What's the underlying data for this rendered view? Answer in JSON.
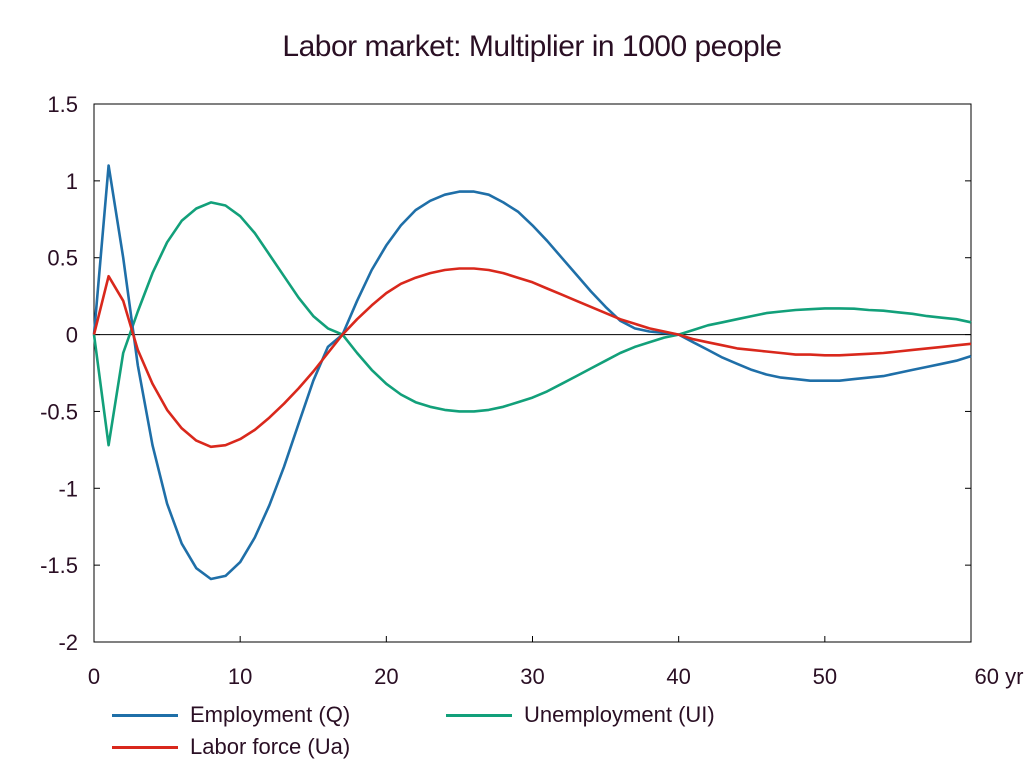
{
  "chart_data": {
    "type": "line",
    "title": "Labor market: Multiplier in 1000 people",
    "xlabel": "",
    "ylabel": "",
    "x_unit": "yr",
    "xlim": [
      0,
      60
    ],
    "ylim": [
      -2,
      1.5
    ],
    "x_ticks": [
      0,
      10,
      20,
      30,
      40,
      50,
      60
    ],
    "x_tick_labels": [
      "0",
      "10",
      "20",
      "30",
      "40",
      "50",
      "60 yr"
    ],
    "y_ticks": [
      1.5,
      1,
      0.5,
      0,
      -0.5,
      -1,
      -1.5,
      -2
    ],
    "y_tick_labels": [
      "1.5",
      "1",
      "0.5",
      "0",
      "-0.5",
      "-1",
      "-1.5",
      "-2"
    ],
    "grid": false,
    "legend_position": "bottom",
    "series": [
      {
        "name": "Employment (Q)",
        "color": "#1f6fa8",
        "x": [
          0,
          1,
          2,
          3,
          4,
          5,
          6,
          7,
          8,
          9,
          10,
          11,
          12,
          13,
          14,
          15,
          16,
          17,
          18,
          19,
          20,
          21,
          22,
          23,
          24,
          25,
          26,
          27,
          28,
          29,
          30,
          31,
          32,
          33,
          34,
          35,
          36,
          37,
          38,
          39,
          40,
          41,
          42,
          43,
          44,
          45,
          46,
          47,
          48,
          49,
          50,
          51,
          52,
          53,
          54,
          55,
          56,
          57,
          58,
          59,
          60
        ],
        "y": [
          0,
          1.1,
          0.5,
          -0.2,
          -0.72,
          -1.1,
          -1.36,
          -1.52,
          -1.59,
          -1.57,
          -1.48,
          -1.32,
          -1.11,
          -0.86,
          -0.58,
          -0.3,
          -0.08,
          0,
          0.22,
          0.42,
          0.58,
          0.71,
          0.81,
          0.87,
          0.91,
          0.93,
          0.93,
          0.91,
          0.86,
          0.8,
          0.71,
          0.61,
          0.5,
          0.39,
          0.28,
          0.18,
          0.09,
          0.04,
          0.02,
          0.01,
          0,
          -0.05,
          -0.1,
          -0.15,
          -0.19,
          -0.23,
          -0.26,
          -0.28,
          -0.29,
          -0.3,
          -0.3,
          -0.3,
          -0.29,
          -0.28,
          -0.27,
          -0.25,
          -0.23,
          -0.21,
          -0.19,
          -0.17,
          -0.14
        ]
      },
      {
        "name": "Unemployment (UI)",
        "color": "#12a07a",
        "x": [
          0,
          1,
          2,
          3,
          4,
          5,
          6,
          7,
          8,
          9,
          10,
          11,
          12,
          13,
          14,
          15,
          16,
          17,
          18,
          19,
          20,
          21,
          22,
          23,
          24,
          25,
          26,
          27,
          28,
          29,
          30,
          31,
          32,
          33,
          34,
          35,
          36,
          37,
          38,
          39,
          40,
          41,
          42,
          43,
          44,
          45,
          46,
          47,
          48,
          49,
          50,
          51,
          52,
          53,
          54,
          55,
          56,
          57,
          58,
          59,
          60
        ],
        "y": [
          0,
          -0.72,
          -0.12,
          0.15,
          0.4,
          0.6,
          0.74,
          0.82,
          0.86,
          0.84,
          0.77,
          0.66,
          0.52,
          0.38,
          0.24,
          0.12,
          0.04,
          0,
          -0.12,
          -0.23,
          -0.32,
          -0.39,
          -0.44,
          -0.47,
          -0.49,
          -0.5,
          -0.5,
          -0.49,
          -0.47,
          -0.44,
          -0.41,
          -0.37,
          -0.32,
          -0.27,
          -0.22,
          -0.17,
          -0.12,
          -0.08,
          -0.05,
          -0.02,
          0,
          0.03,
          0.06,
          0.08,
          0.1,
          0.12,
          0.14,
          0.15,
          0.16,
          0.165,
          0.17,
          0.17,
          0.168,
          0.16,
          0.155,
          0.145,
          0.135,
          0.12,
          0.11,
          0.1,
          0.08
        ]
      },
      {
        "name": "Labor force (Ua)",
        "color": "#d9281c",
        "x": [
          0,
          1,
          2,
          3,
          4,
          5,
          6,
          7,
          8,
          9,
          10,
          11,
          12,
          13,
          14,
          15,
          16,
          17,
          18,
          19,
          20,
          21,
          22,
          23,
          24,
          25,
          26,
          27,
          28,
          29,
          30,
          31,
          32,
          33,
          34,
          35,
          36,
          37,
          38,
          39,
          40,
          41,
          42,
          43,
          44,
          45,
          46,
          47,
          48,
          49,
          50,
          51,
          52,
          53,
          54,
          55,
          56,
          57,
          58,
          59,
          60
        ],
        "y": [
          0,
          0.38,
          0.22,
          -0.1,
          -0.32,
          -0.49,
          -0.61,
          -0.69,
          -0.73,
          -0.72,
          -0.68,
          -0.62,
          -0.54,
          -0.45,
          -0.35,
          -0.24,
          -0.12,
          0,
          0.1,
          0.19,
          0.27,
          0.33,
          0.37,
          0.4,
          0.42,
          0.43,
          0.43,
          0.42,
          0.4,
          0.37,
          0.34,
          0.3,
          0.26,
          0.22,
          0.18,
          0.14,
          0.1,
          0.07,
          0.04,
          0.02,
          0,
          -0.03,
          -0.05,
          -0.07,
          -0.09,
          -0.1,
          -0.11,
          -0.12,
          -0.13,
          -0.13,
          -0.135,
          -0.135,
          -0.13,
          -0.125,
          -0.12,
          -0.11,
          -0.1,
          -0.09,
          -0.08,
          -0.07,
          -0.06
        ]
      }
    ]
  }
}
